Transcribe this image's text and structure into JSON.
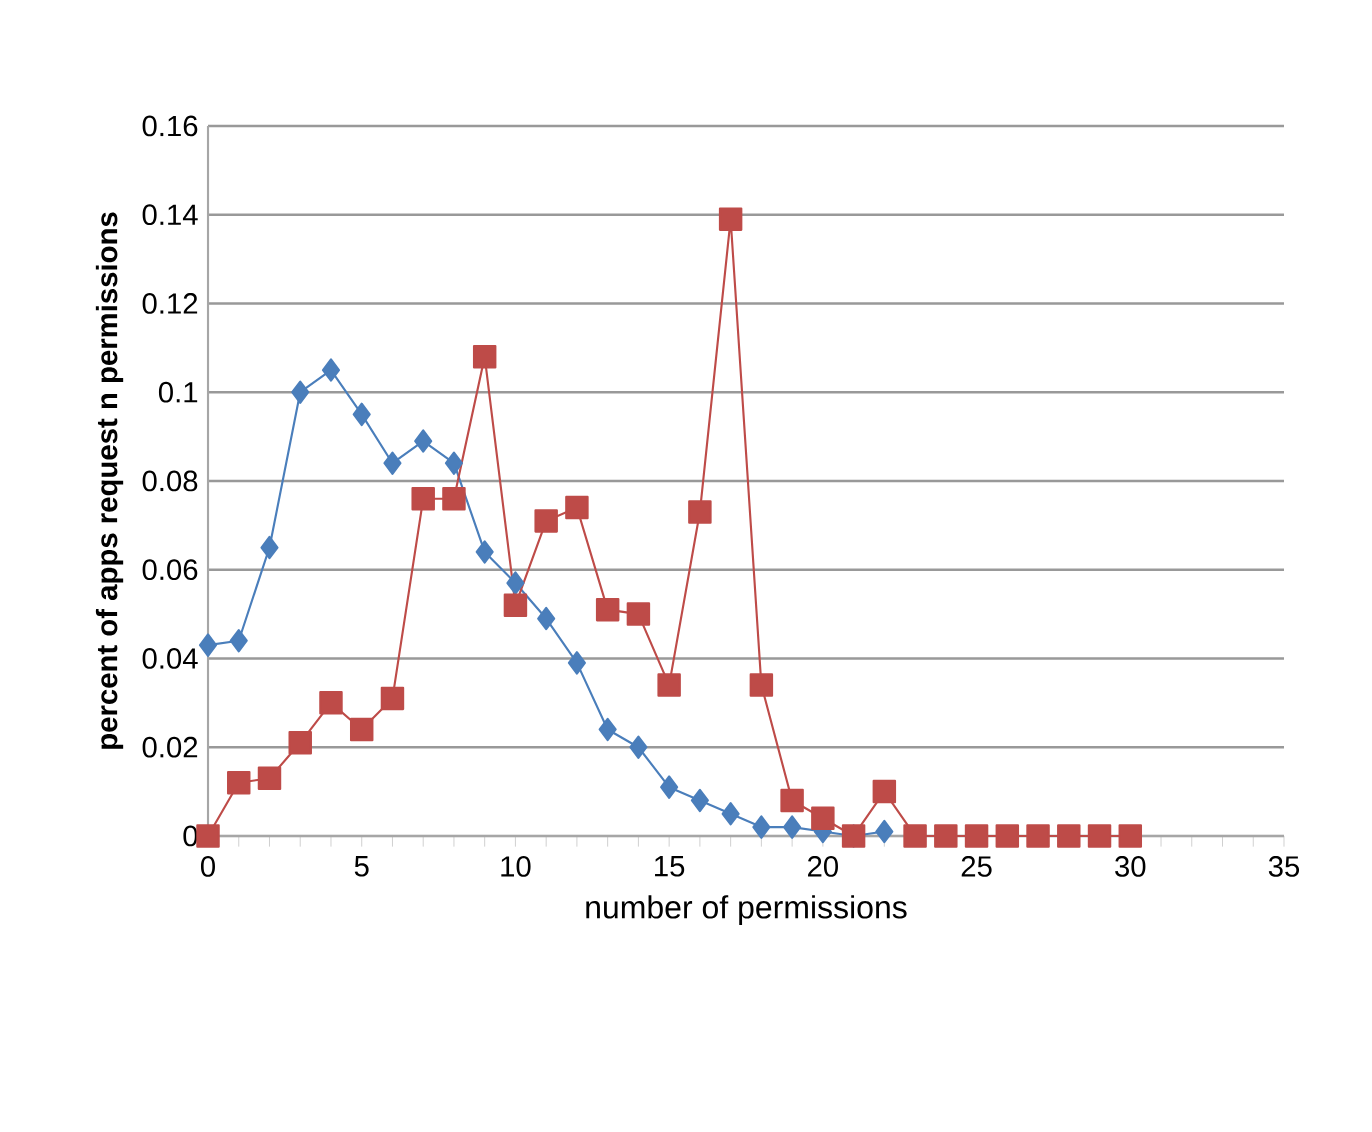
{
  "chart_data": {
    "type": "line",
    "xlabel": "number of permissions",
    "ylabel": "percent of apps request n permissions",
    "xlim": [
      0,
      35
    ],
    "xticks": [
      0,
      5,
      10,
      15,
      20,
      25,
      30,
      35
    ],
    "ylim": [
      0,
      0.16
    ],
    "yticks": [
      0,
      0.02,
      0.04,
      0.06,
      0.08,
      0.1,
      0.12,
      0.14,
      0.16
    ],
    "grid": "y",
    "series": [
      {
        "color": "#4a7ebb",
        "marker": "diamond",
        "x": [
          0,
          1,
          2,
          3,
          4,
          5,
          6,
          7,
          8,
          9,
          10,
          11,
          12,
          13,
          14,
          15,
          16,
          17,
          18,
          19,
          20,
          21,
          22
        ],
        "values": [
          0.043,
          0.044,
          0.065,
          0.1,
          0.105,
          0.095,
          0.084,
          0.089,
          0.084,
          0.064,
          0.057,
          0.049,
          0.039,
          0.024,
          0.02,
          0.011,
          0.008,
          0.005,
          0.002,
          0.002,
          0.001,
          0,
          0.001
        ]
      },
      {
        "color": "#be4b48",
        "marker": "square",
        "x": [
          0,
          1,
          2,
          3,
          4,
          5,
          6,
          7,
          8,
          9,
          10,
          11,
          12,
          13,
          14,
          15,
          16,
          17,
          18,
          19,
          20,
          21,
          22,
          23,
          24,
          25,
          26,
          27,
          28,
          29,
          30
        ],
        "values": [
          0,
          0.012,
          0.013,
          0.021,
          0.03,
          0.024,
          0.031,
          0.076,
          0.076,
          0.108,
          0.052,
          0.071,
          0.074,
          0.051,
          0.05,
          0.034,
          0.073,
          0.139,
          0.034,
          0.008,
          0.004,
          0,
          0.01,
          0,
          0,
          0,
          0,
          0,
          0,
          0,
          0
        ]
      }
    ]
  }
}
